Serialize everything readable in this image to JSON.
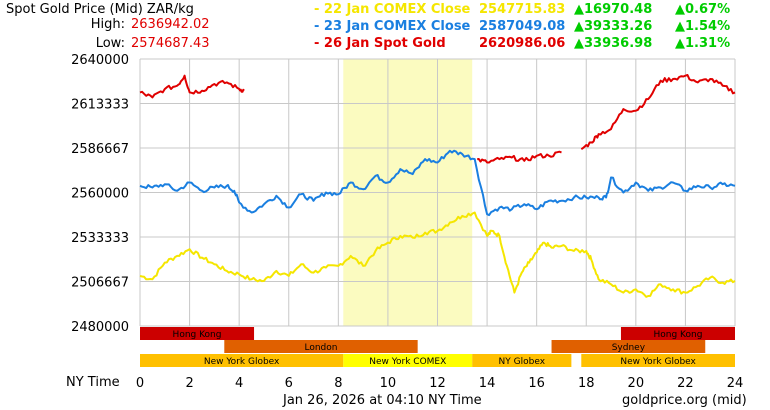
{
  "header": {
    "title": "Spot Gold Price (Mid) ZAR/kg",
    "high_label": "High:",
    "high_value": "2636942.02",
    "low_label": "Low:",
    "low_value": "2574687.43"
  },
  "legend": [
    {
      "label": "- 22 Jan COMEX Close",
      "value": "2547715.83",
      "change": "▲16970.48",
      "pct": "▲0.67%",
      "color": "#f5e600"
    },
    {
      "label": "- 23 Jan COMEX Close",
      "value": "2587049.08",
      "change": "▲39333.26",
      "pct": "▲1.54%",
      "color": "#1a7fe0"
    },
    {
      "label": "- 26 Jan Spot Gold",
      "value": "2620986.06",
      "change": "▲33936.98",
      "pct": "▲1.31%",
      "color": "#e00000"
    }
  ],
  "footer": {
    "x_axis_label": "NY Time",
    "timestamp": "Jan 26, 2026 at 04:10 NY Time",
    "source": "goldprice.org (mid)"
  },
  "colors": {
    "grid": "#c8c8c8",
    "highlight": "#fbfbc0",
    "yellow": "#f5e600",
    "blue": "#1a7fe0",
    "red": "#e00000",
    "session_red": "#cc0000",
    "session_orange": "#e06000",
    "session_gold": "#ffc000",
    "session_comex": "#ffff00"
  },
  "chart_data": {
    "type": "line",
    "x_ticks": [
      "0",
      "2",
      "4",
      "6",
      "8",
      "10",
      "12",
      "14",
      "16",
      "18",
      "20",
      "22",
      "24"
    ],
    "y_ticks": [
      "2640000",
      "2613333",
      "2586667",
      "2560000",
      "2533333",
      "2506667",
      "2480000"
    ],
    "xlim": [
      0,
      24
    ],
    "ylim": [
      2480000,
      2640000
    ],
    "highlight_range": [
      8.2,
      13.4
    ],
    "series": [
      {
        "name": "22 Jan COMEX Close",
        "color": "#f5e600",
        "points": [
          [
            0,
            2510000
          ],
          [
            0.5,
            2508000
          ],
          [
            1,
            2518000
          ],
          [
            1.5,
            2522000
          ],
          [
            2,
            2526000
          ],
          [
            2.5,
            2521000
          ],
          [
            3,
            2517000
          ],
          [
            3.5,
            2513000
          ],
          [
            4,
            2511000
          ],
          [
            4.5,
            2508000
          ],
          [
            5,
            2507000
          ],
          [
            5.5,
            2513000
          ],
          [
            6,
            2510000
          ],
          [
            6.5,
            2517000
          ],
          [
            7,
            2512000
          ],
          [
            7.5,
            2515000
          ],
          [
            8,
            2516000
          ],
          [
            8.5,
            2522000
          ],
          [
            9,
            2516000
          ],
          [
            9.5,
            2525000
          ],
          [
            10,
            2530000
          ],
          [
            10.5,
            2534000
          ],
          [
            11,
            2533000
          ],
          [
            11.5,
            2536000
          ],
          [
            12,
            2537000
          ],
          [
            12.5,
            2542000
          ],
          [
            13,
            2546000
          ],
          [
            13.5,
            2548000
          ],
          [
            14,
            2534000
          ],
          [
            14.2,
            2537000
          ],
          [
            14.5,
            2534000
          ],
          [
            14.8,
            2516000
          ],
          [
            15.1,
            2500000
          ],
          [
            15.4,
            2512000
          ],
          [
            15.7,
            2518000
          ],
          [
            16,
            2524000
          ],
          [
            16.3,
            2530000
          ],
          [
            16.6,
            2527000
          ],
          [
            17,
            2528000
          ],
          [
            17.5,
            2525000
          ],
          [
            18,
            2525000
          ],
          [
            18.2,
            2520000
          ],
          [
            18.5,
            2508000
          ],
          [
            19,
            2505000
          ],
          [
            19.5,
            2500000
          ],
          [
            20,
            2502000
          ],
          [
            20.5,
            2498000
          ],
          [
            21,
            2505000
          ],
          [
            21.5,
            2502000
          ],
          [
            22,
            2500000
          ],
          [
            22.5,
            2504000
          ],
          [
            23,
            2509000
          ],
          [
            23.5,
            2506000
          ],
          [
            24,
            2507000
          ]
        ]
      },
      {
        "name": "23 Jan COMEX Close",
        "color": "#1a7fe0",
        "points": [
          [
            0,
            2564000
          ],
          [
            0.5,
            2563000
          ],
          [
            1,
            2565000
          ],
          [
            1.5,
            2561000
          ],
          [
            2,
            2566000
          ],
          [
            2.5,
            2561000
          ],
          [
            3,
            2563000
          ],
          [
            3.5,
            2564000
          ],
          [
            3.8,
            2561000
          ],
          [
            4,
            2554000
          ],
          [
            4.5,
            2548000
          ],
          [
            5,
            2553000
          ],
          [
            5.5,
            2558000
          ],
          [
            6,
            2551000
          ],
          [
            6.5,
            2559000
          ],
          [
            7,
            2555000
          ],
          [
            7.5,
            2560000
          ],
          [
            8,
            2559000
          ],
          [
            8.5,
            2566000
          ],
          [
            9,
            2562000
          ],
          [
            9.5,
            2570000
          ],
          [
            10,
            2566000
          ],
          [
            10.5,
            2574000
          ],
          [
            11,
            2571000
          ],
          [
            11.5,
            2580000
          ],
          [
            12,
            2578000
          ],
          [
            12.5,
            2585000
          ],
          [
            13,
            2583000
          ],
          [
            13.5,
            2580000
          ],
          [
            14,
            2547000
          ],
          [
            14.5,
            2551000
          ],
          [
            15,
            2550000
          ],
          [
            15.5,
            2553000
          ],
          [
            16,
            2550000
          ],
          [
            16.5,
            2555000
          ],
          [
            17,
            2555000
          ],
          [
            17.5,
            2557000
          ],
          [
            18,
            2557000
          ],
          [
            18.5,
            2557000
          ],
          [
            18.8,
            2557000
          ],
          [
            19,
            2569000
          ],
          [
            19.5,
            2560000
          ],
          [
            20,
            2566000
          ],
          [
            20.5,
            2561000
          ],
          [
            21,
            2563000
          ],
          [
            21.5,
            2566000
          ],
          [
            22,
            2561000
          ],
          [
            22.5,
            2564000
          ],
          [
            23,
            2563000
          ],
          [
            23.5,
            2565000
          ],
          [
            24,
            2564000
          ]
        ]
      },
      {
        "name": "26 Jan Spot Gold (early)",
        "color": "#e00000",
        "points": [
          [
            0,
            2620000
          ],
          [
            0.5,
            2617000
          ],
          [
            1,
            2622000
          ],
          [
            1.5,
            2624000
          ],
          [
            1.8,
            2630000
          ],
          [
            2,
            2620000
          ],
          [
            2.5,
            2621000
          ],
          [
            3,
            2625000
          ],
          [
            3.5,
            2626000
          ],
          [
            4,
            2622000
          ],
          [
            4.2,
            2621000
          ]
        ]
      },
      {
        "name": "26 Jan Spot Gold (mid)",
        "color": "#e00000",
        "points": [
          [
            13.6,
            2580000
          ],
          [
            14,
            2578000
          ],
          [
            14.5,
            2580000
          ],
          [
            15,
            2581000
          ],
          [
            15.5,
            2579000
          ],
          [
            16,
            2582000
          ],
          [
            16.5,
            2582000
          ],
          [
            17,
            2584000
          ]
        ]
      },
      {
        "name": "26 Jan Spot Gold (late)",
        "color": "#e00000",
        "points": [
          [
            17.8,
            2586000
          ],
          [
            18.2,
            2590000
          ],
          [
            18.5,
            2595000
          ],
          [
            19,
            2598000
          ],
          [
            19.5,
            2610000
          ],
          [
            20,
            2609000
          ],
          [
            20.5,
            2616000
          ],
          [
            21,
            2627000
          ],
          [
            21.5,
            2628000
          ],
          [
            22,
            2630000
          ],
          [
            22.5,
            2626000
          ],
          [
            23,
            2628000
          ],
          [
            23.5,
            2624000
          ],
          [
            24,
            2620000
          ]
        ]
      }
    ]
  },
  "sessions": [
    {
      "row": 0,
      "label": "Hong Kong",
      "start": 0,
      "end": 4.6,
      "color": "#cc0000"
    },
    {
      "row": 0,
      "label": "Hong Kong",
      "start": 19.4,
      "end": 24,
      "color": "#cc0000"
    },
    {
      "row": 1,
      "label": "London",
      "start": 3.4,
      "end": 11.2,
      "color": "#e06000"
    },
    {
      "row": 1,
      "label": "Sydney",
      "start": 16.6,
      "end": 22.8,
      "color": "#e06000"
    },
    {
      "row": 2,
      "label": "New York Globex",
      "start": 0,
      "end": 8.2,
      "color": "#ffc000"
    },
    {
      "row": 2,
      "label": "New York COMEX",
      "start": 8.2,
      "end": 13.4,
      "color": "#ffff00"
    },
    {
      "row": 2,
      "label": "NY Globex",
      "start": 13.4,
      "end": 17.4,
      "color": "#ffc000"
    },
    {
      "row": 2,
      "label": "New York Globex",
      "start": 17.8,
      "end": 24,
      "color": "#ffc000"
    }
  ]
}
